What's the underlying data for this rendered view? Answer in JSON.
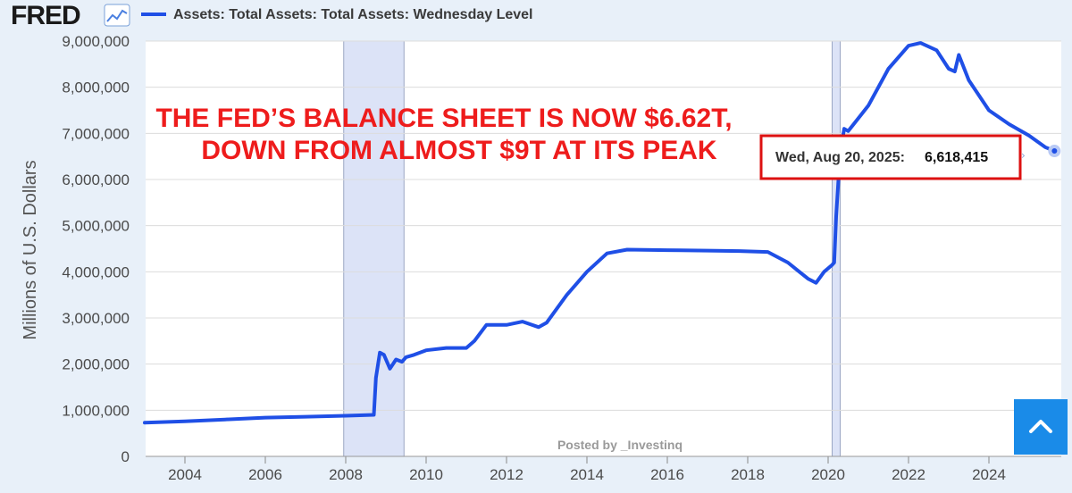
{
  "header": {
    "logo_text": "FRED",
    "legend_label": "Assets: Total Assets: Total Assets: Wednesday Level"
  },
  "colors": {
    "series": "#1f4fe6",
    "recession": "#dce3f7",
    "annotation": "#ee1c1c",
    "button": "#1a8be8"
  },
  "annotation": {
    "line1": "THE FED’S BALANCE SHEET IS NOW $6.62T,",
    "line2": "DOWN FROM ALMOST $9T AT ITS PEAK"
  },
  "tooltip": {
    "date": "Wed, Aug 20, 2025:",
    "value": "6,618,415"
  },
  "credit": "Posted by _Investinq",
  "icons": {
    "chart_icon": "line-chart-icon",
    "scroll_top": "chevron-up-icon"
  },
  "chart_data": {
    "type": "line",
    "title": "",
    "xlabel": "",
    "ylabel": "Millions of U.S. Dollars",
    "xlim": [
      2003.0,
      2025.8
    ],
    "ylim": [
      0,
      9000000
    ],
    "grid": true,
    "legend_position": "top-left",
    "x_ticks": [
      "2004",
      "2006",
      "2008",
      "2010",
      "2012",
      "2014",
      "2016",
      "2018",
      "2020",
      "2022",
      "2024"
    ],
    "y_ticks": [
      "0",
      "1,000,000",
      "2,000,000",
      "3,000,000",
      "4,000,000",
      "5,000,000",
      "6,000,000",
      "7,000,000",
      "8,000,000",
      "9,000,000"
    ],
    "recessions": [
      [
        2007.95,
        2009.45
      ],
      [
        2020.1,
        2020.3
      ]
    ],
    "series": [
      {
        "name": "Assets: Total Assets: Total Assets: Wednesday Level",
        "x": [
          2003.0,
          2004.0,
          2005.0,
          2006.0,
          2007.0,
          2008.0,
          2008.7,
          2008.75,
          2008.85,
          2008.95,
          2009.1,
          2009.25,
          2009.4,
          2009.5,
          2009.7,
          2010.0,
          2010.5,
          2011.0,
          2011.2,
          2011.5,
          2012.0,
          2012.4,
          2012.8,
          2013.0,
          2013.5,
          2014.0,
          2014.5,
          2015.0,
          2016.0,
          2017.0,
          2017.8,
          2018.5,
          2019.0,
          2019.5,
          2019.7,
          2019.9,
          2020.1,
          2020.15,
          2020.2,
          2020.3,
          2020.4,
          2020.5,
          2021.0,
          2021.5,
          2022.0,
          2022.3,
          2022.7,
          2023.0,
          2023.15,
          2023.25,
          2023.5,
          2024.0,
          2024.5,
          2025.0,
          2025.4,
          2025.63
        ],
        "y": [
          730000,
          760000,
          800000,
          840000,
          860000,
          880000,
          900000,
          1700000,
          2250000,
          2200000,
          1900000,
          2100000,
          2050000,
          2150000,
          2200000,
          2300000,
          2350000,
          2350000,
          2500000,
          2850000,
          2850000,
          2920000,
          2800000,
          2900000,
          3500000,
          4000000,
          4400000,
          4480000,
          4470000,
          4460000,
          4450000,
          4430000,
          4200000,
          3850000,
          3760000,
          4000000,
          4150000,
          4200000,
          5200000,
          6600000,
          7100000,
          7050000,
          7600000,
          8400000,
          8900000,
          8960000,
          8800000,
          8400000,
          8340000,
          8700000,
          8150000,
          7500000,
          7200000,
          6950000,
          6700000,
          6618415
        ]
      }
    ]
  }
}
